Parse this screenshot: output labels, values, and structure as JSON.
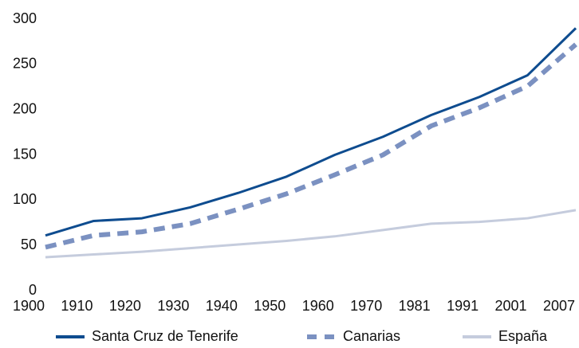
{
  "chart_data": {
    "type": "line",
    "categories": [
      "1900",
      "1910",
      "1920",
      "1930",
      "1940",
      "1950",
      "1960",
      "1970",
      "1981",
      "1991",
      "2001",
      "2007"
    ],
    "series": [
      {
        "name": "Santa Cruz de Tenerife",
        "color": "#0e4c8f",
        "dash": false,
        "values": [
          61,
          77,
          80,
          92,
          108,
          126,
          150,
          170,
          194,
          214,
          238,
          290
        ]
      },
      {
        "name": "Canarias",
        "color": "#7b91c1",
        "dash": true,
        "values": [
          48,
          61,
          65,
          74,
          90,
          107,
          128,
          150,
          182,
          202,
          226,
          272
        ]
      },
      {
        "name": "España",
        "color": "#c5ccdd",
        "dash": false,
        "values": [
          37,
          40,
          43,
          47,
          51,
          55,
          60,
          67,
          74,
          76,
          80,
          89
        ]
      }
    ],
    "ylim": [
      0,
      300
    ],
    "yticks": [
      0,
      50,
      100,
      150,
      200,
      250,
      300
    ],
    "grid": false,
    "legend": "bottom"
  }
}
